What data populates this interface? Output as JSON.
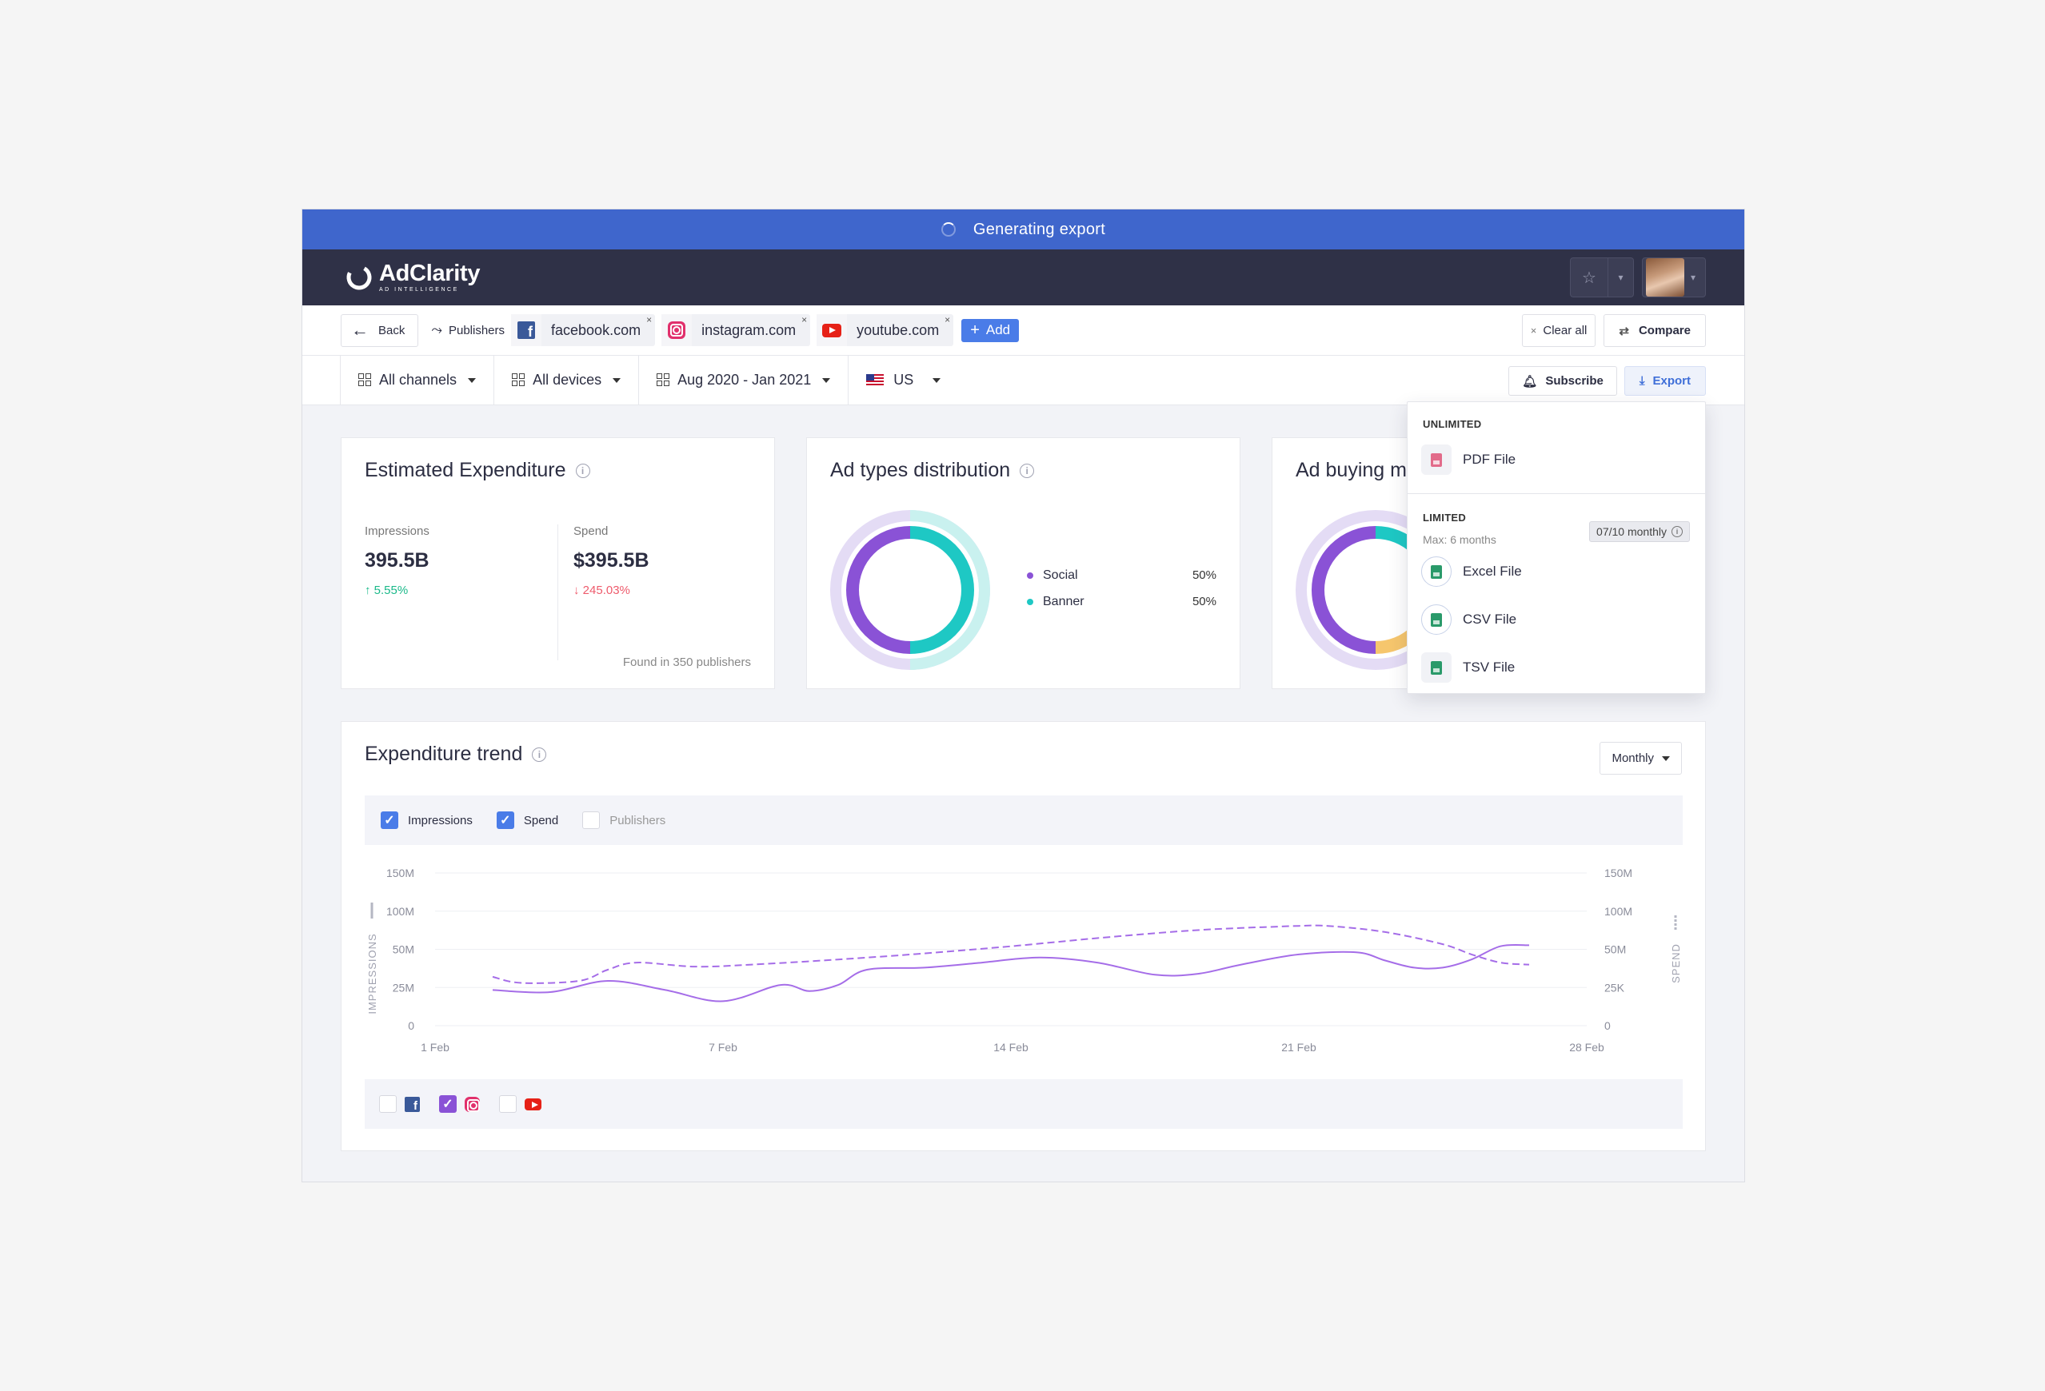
{
  "banner": {
    "text": "Generating export"
  },
  "app": {
    "name": "AdClarity",
    "tagline": "AD INTELLIGENCE"
  },
  "topbar": {
    "star_icon": "star-icon",
    "caret": "▾"
  },
  "breadcrumb": {
    "back_label": "Back",
    "publishers_label": "Publishers",
    "chips": [
      {
        "label": "facebook.com",
        "icon": "facebook-icon"
      },
      {
        "label": "instagram.com",
        "icon": "instagram-icon"
      },
      {
        "label": "youtube.com",
        "icon": "youtube-icon"
      }
    ],
    "add_label": "Add",
    "clear_all_label": "Clear all",
    "compare_label": "Compare"
  },
  "filters": {
    "channels": "All channels",
    "devices": "All devices",
    "date_range": "Aug 2020 - Jan 2021",
    "country": "US",
    "subscribe_label": "Subscribe",
    "export_label": "Export"
  },
  "estimated_expenditure": {
    "title": "Estimated Expenditure",
    "impressions_label": "Impressions",
    "impressions_value": "395.5B",
    "impressions_delta": "5.55%",
    "spend_label": "Spend",
    "spend_value": "$395.5B",
    "spend_delta": "245.03%",
    "found_text": "Found in 350 publishers"
  },
  "ad_types": {
    "title": "Ad types distribution",
    "items": [
      {
        "label": "Social",
        "pct": "50%",
        "value": 50,
        "color": "#8a52d6"
      },
      {
        "label": "Banner",
        "pct": "50%",
        "value": 50,
        "color": "#1ec8c4"
      }
    ]
  },
  "ad_buying": {
    "title": "Ad buying m"
  },
  "export_menu": {
    "unlimited_heading": "UNLIMITED",
    "pdf_label": "PDF File",
    "limited_heading": "LIMITED",
    "limited_note": "Max: 6 months",
    "quota_badge": "07/10 monthly",
    "excel_label": "Excel File",
    "csv_label": "CSV File",
    "tsv_label": "TSV File"
  },
  "trend": {
    "title": "Expenditure trend",
    "granularity": "Monthly",
    "metrics": [
      {
        "label": "Impressions",
        "checked": true
      },
      {
        "label": "Spend",
        "checked": true
      },
      {
        "label": "Publishers",
        "checked": false
      }
    ],
    "sources": [
      {
        "icon": "facebook-icon",
        "checked": false
      },
      {
        "icon": "instagram-icon",
        "checked": true
      },
      {
        "icon": "youtube-icon",
        "checked": false
      }
    ]
  },
  "chart_data": {
    "type": "line",
    "x_ticks": [
      "1 Feb",
      "7 Feb",
      "14 Feb",
      "21 Feb",
      "28 Feb"
    ],
    "left_axis": {
      "label": "IMPRESSIONS",
      "ticks": [
        "0",
        "25M",
        "50M",
        "100M",
        "150M"
      ]
    },
    "right_axis": {
      "label": "SPEND",
      "ticks": [
        "0",
        "25K",
        "50M",
        "100M",
        "150M"
      ]
    },
    "grid": true,
    "series": [
      {
        "style": "solid",
        "color": "#a56de8",
        "x": [
          2,
          4,
          6,
          8,
          10,
          12,
          13,
          14,
          15,
          17,
          19,
          21,
          23,
          25,
          26.5,
          28,
          30,
          32,
          33,
          34,
          35,
          36,
          37,
          38
        ],
        "values": [
          35,
          33,
          44,
          35,
          24,
          40,
          34,
          40,
          55,
          57,
          62,
          67,
          62,
          50,
          51,
          60,
          70,
          72,
          64,
          57,
          57,
          65,
          78,
          79
        ]
      },
      {
        "style": "dashed",
        "color": "#a56de8",
        "x": [
          2,
          3,
          5,
          6,
          7,
          9,
          11,
          14,
          17,
          20,
          23,
          26,
          28,
          29,
          30,
          31,
          33,
          35,
          36,
          37,
          38
        ],
        "values": [
          48,
          42,
          44,
          55,
          62,
          58,
          60,
          65,
          71,
          78,
          86,
          93,
          96,
          97,
          98,
          98,
          92,
          80,
          70,
          62,
          60
        ]
      }
    ]
  }
}
